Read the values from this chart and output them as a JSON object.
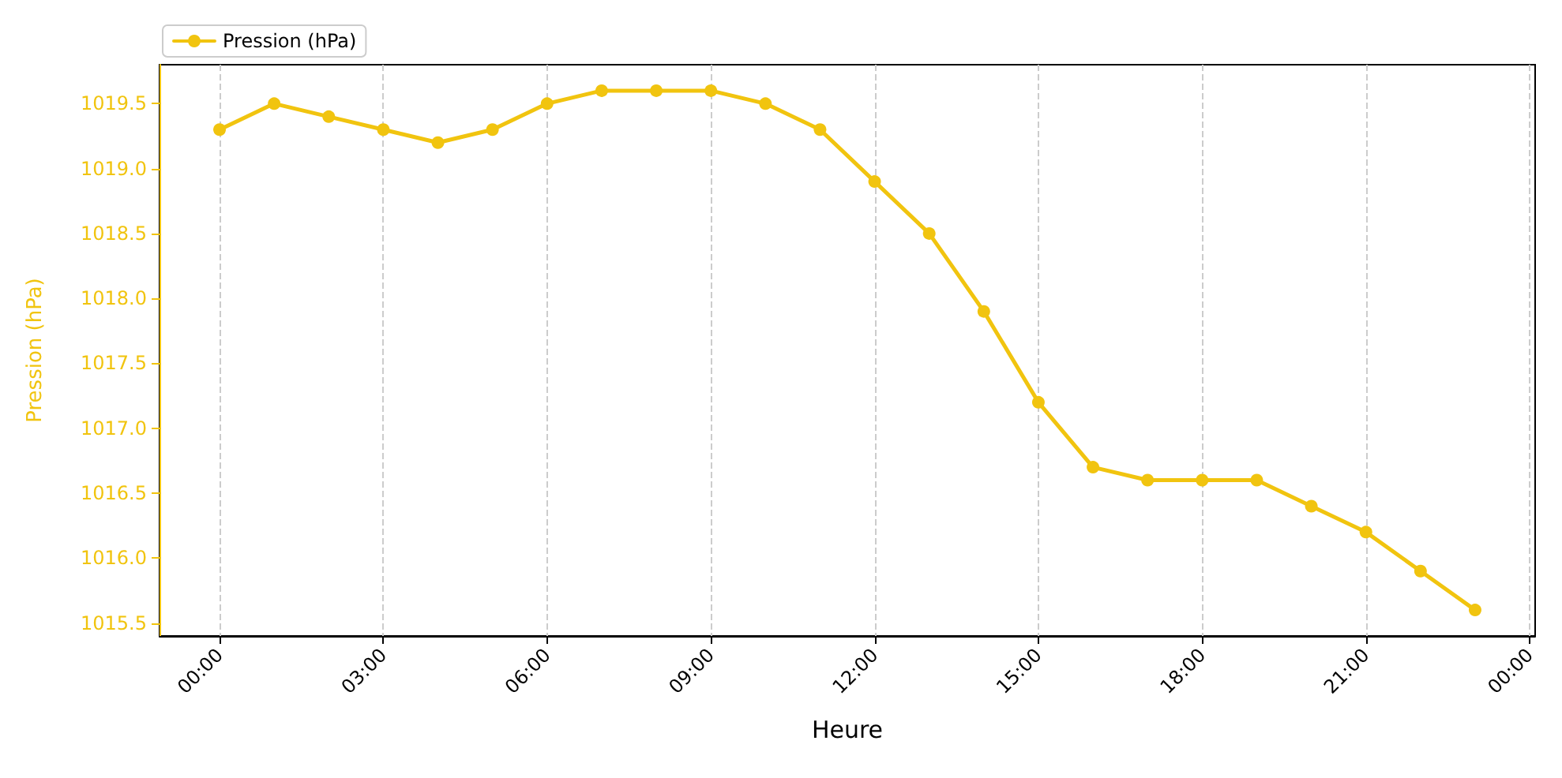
{
  "chart_data": {
    "type": "line",
    "xlabel": "Heure",
    "ylabel": "Pression (hPa)",
    "x": [
      0,
      1,
      2,
      3,
      4,
      5,
      6,
      7,
      8,
      9,
      10,
      11,
      12,
      13,
      14,
      15,
      16,
      17,
      18,
      19,
      20,
      21,
      22,
      23
    ],
    "series": [
      {
        "name": "Pression (hPa)",
        "color": "#f1c40f",
        "values": [
          1019.3,
          1019.5,
          1019.4,
          1019.3,
          1019.2,
          1019.3,
          1019.5,
          1019.6,
          1019.6,
          1019.6,
          1019.5,
          1019.3,
          1018.9,
          1018.5,
          1017.9,
          1017.2,
          1016.7,
          1016.6,
          1016.6,
          1016.6,
          1016.4,
          1016.2,
          1015.9,
          1015.6
        ]
      }
    ],
    "xlim": [
      -1.1,
      24.1
    ],
    "xticks": [
      {
        "value": 0,
        "label": "00:00"
      },
      {
        "value": 3,
        "label": "03:00"
      },
      {
        "value": 6,
        "label": "06:00"
      },
      {
        "value": 9,
        "label": "09:00"
      },
      {
        "value": 12,
        "label": "12:00"
      },
      {
        "value": 15,
        "label": "15:00"
      },
      {
        "value": 18,
        "label": "18:00"
      },
      {
        "value": 21,
        "label": "21:00"
      },
      {
        "value": 24,
        "label": "00:00"
      }
    ],
    "ylim": [
      1015.4,
      1019.8
    ],
    "yticks": [
      1015.5,
      {
        "value": 1016,
        "label": "1016.0"
      },
      1016.5,
      {
        "value": 1017,
        "label": "1017.0"
      },
      1017.5,
      {
        "value": 1018,
        "label": "1018.0"
      },
      1018.5,
      {
        "value": 1019,
        "label": "1019.0"
      },
      1019.5
    ],
    "grid": "x",
    "legend": "top left",
    "marker": "circle",
    "line_style": "solid"
  }
}
